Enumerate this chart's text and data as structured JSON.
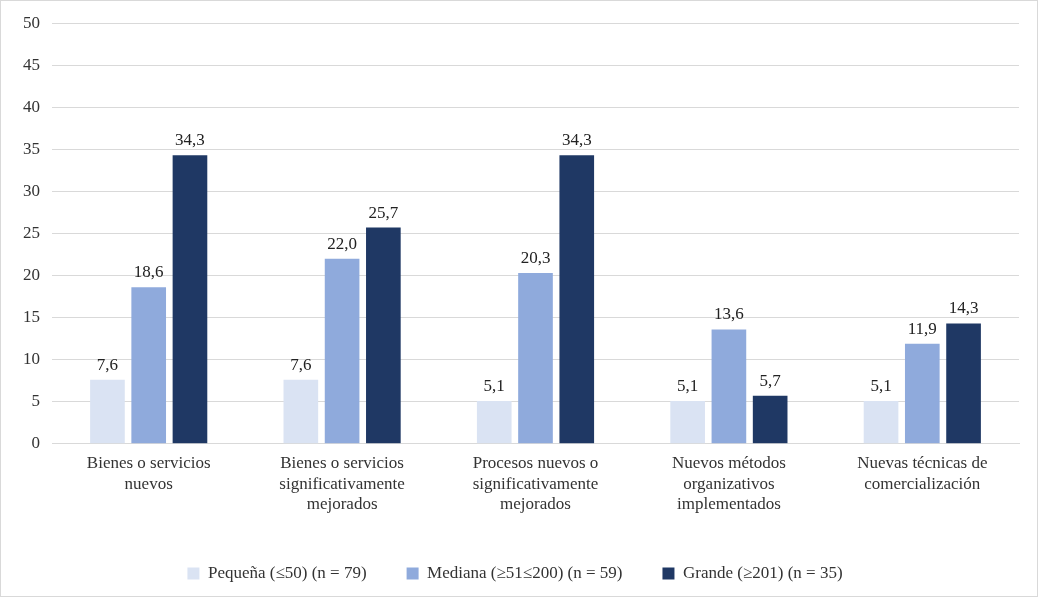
{
  "chart_data": {
    "type": "bar",
    "categories": [
      "Bienes o servicios nuevos",
      "Bienes o servicios significativamente mejorados",
      "Procesos nuevos o significativamente mejorados",
      "Nuevos métodos organizativos implementados",
      "Nuevas técnicas de comercialización"
    ],
    "series": [
      {
        "name": "Pequeña (≤50) (n = 79)",
        "color": "#dae3f3",
        "values": [
          7.6,
          7.6,
          5.1,
          5.1,
          5.1
        ],
        "value_labels": [
          "7,6",
          "7,6",
          "5,1",
          "5,1",
          "5,1"
        ]
      },
      {
        "name": "Mediana (≥51≤200) (n = 59)",
        "color": "#8faadc",
        "values": [
          18.6,
          22.0,
          20.3,
          13.6,
          11.9
        ],
        "value_labels": [
          "18,6",
          "22,0",
          "20,3",
          "13,6",
          "11,9"
        ]
      },
      {
        "name": "Grande (≥201) (n = 35)",
        "color": "#1f3864",
        "values": [
          34.3,
          25.7,
          34.3,
          5.7,
          14.3
        ],
        "value_labels": [
          "34,3",
          "25,7",
          "34,3",
          "5,7",
          "14,3"
        ]
      }
    ],
    "ylim": [
      0,
      50
    ],
    "yticks": [
      0,
      5,
      10,
      15,
      20,
      25,
      30,
      35,
      40,
      45,
      50
    ],
    "grid": "y",
    "legend": "bottom"
  }
}
